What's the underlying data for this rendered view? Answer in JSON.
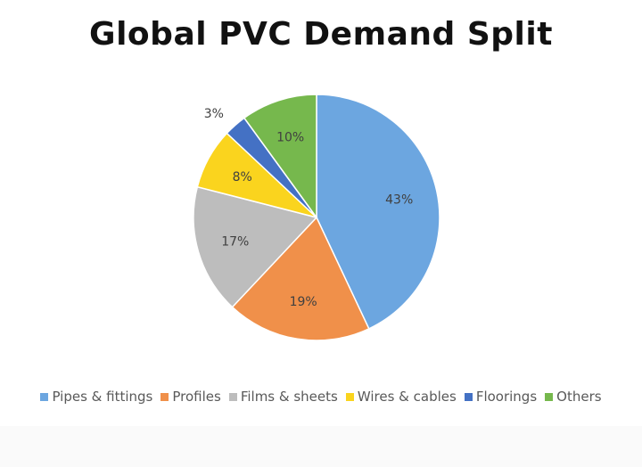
{
  "chart_data": {
    "type": "pie",
    "title": "Global PVC Demand Split",
    "categories": [
      "Pipes & fittings",
      "Profiles",
      "Films & sheets",
      "Wires & cables",
      "Floorings",
      "Others"
    ],
    "values": [
      43,
      19,
      17,
      8,
      3,
      10
    ],
    "data_labels": [
      "43%",
      "19%",
      "17%",
      "8%",
      "3%",
      "10%"
    ],
    "colors": [
      "#6CA6E0",
      "#F0904A",
      "#BDBDBD",
      "#FAD41E",
      "#4471C4",
      "#76B84D"
    ],
    "start_angle_deg": 0,
    "direction": "clockwise",
    "legend_position": "bottom"
  }
}
